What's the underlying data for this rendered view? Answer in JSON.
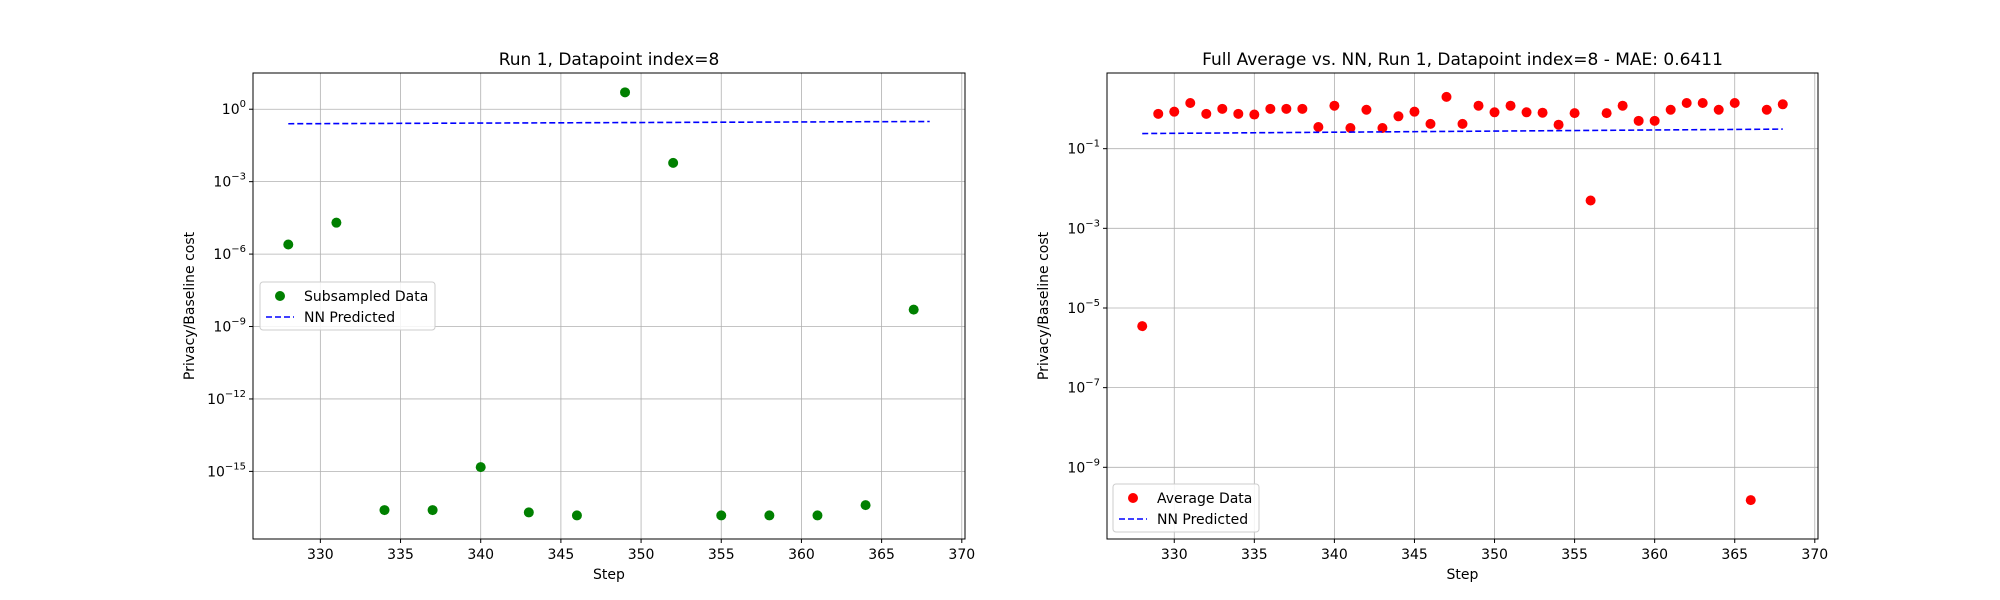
{
  "chart_data": [
    {
      "type": "scatter",
      "title": "Run 1, Datapoint index=8",
      "xlabel": "Step",
      "ylabel": "Privacy/Baseline cost",
      "yscale": "log",
      "xlim": [
        325.8,
        370.2
      ],
      "ylim_log10": [
        -17.8,
        1.5
      ],
      "xticks": [
        330,
        335,
        340,
        345,
        350,
        355,
        360,
        365,
        370
      ],
      "yticks_exp": [
        0,
        -3,
        -6,
        -9,
        -12,
        -15
      ],
      "grid": true,
      "legend_position": "center-left",
      "series": [
        {
          "name": "Subsampled Data",
          "kind": "scatter",
          "color": "#008000",
          "points": [
            {
              "x": 328,
              "y": 2.5e-06
            },
            {
              "x": 331,
              "y": 2e-05
            },
            {
              "x": 334,
              "y": 2.5e-17
            },
            {
              "x": 337,
              "y": 2.5e-17
            },
            {
              "x": 340,
              "y": 1.5e-15
            },
            {
              "x": 343,
              "y": 2e-17
            },
            {
              "x": 346,
              "y": 1.5e-17
            },
            {
              "x": 349,
              "y": 5.0
            },
            {
              "x": 352,
              "y": 0.006
            },
            {
              "x": 355,
              "y": 1.5e-17
            },
            {
              "x": 358,
              "y": 1.5e-17
            },
            {
              "x": 361,
              "y": 1.5e-17
            },
            {
              "x": 364,
              "y": 4e-17
            },
            {
              "x": 367,
              "y": 5e-09
            }
          ]
        },
        {
          "name": "NN Predicted",
          "kind": "dashed-line",
          "color": "#0000ff",
          "points": [
            {
              "x": 328,
              "y": 0.25
            },
            {
              "x": 368,
              "y": 0.31
            }
          ]
        }
      ]
    },
    {
      "type": "scatter",
      "title": "Full Average vs. NN, Run 1, Datapoint index=8 - MAE: 0.6411",
      "xlabel": "Step",
      "ylabel": "Privacy/Baseline cost",
      "yscale": "log",
      "xlim": [
        325.8,
        370.2
      ],
      "ylim_log10": [
        -10.8,
        0.9
      ],
      "xticks": [
        330,
        335,
        340,
        345,
        350,
        355,
        360,
        365,
        370
      ],
      "yticks_exp": [
        -1,
        -3,
        -5,
        -7,
        -9
      ],
      "grid": true,
      "legend_position": "lower-left",
      "series": [
        {
          "name": "Average Data",
          "kind": "scatter",
          "color": "#ff0000",
          "points": [
            {
              "x": 328,
              "y": 3.5e-06
            },
            {
              "x": 329,
              "y": 0.75
            },
            {
              "x": 330,
              "y": 0.85
            },
            {
              "x": 331,
              "y": 1.4
            },
            {
              "x": 332,
              "y": 0.75
            },
            {
              "x": 333,
              "y": 1.0
            },
            {
              "x": 334,
              "y": 0.75
            },
            {
              "x": 335,
              "y": 0.72
            },
            {
              "x": 336,
              "y": 1.0
            },
            {
              "x": 337,
              "y": 1.0
            },
            {
              "x": 338,
              "y": 1.0
            },
            {
              "x": 339,
              "y": 0.35
            },
            {
              "x": 340,
              "y": 1.2
            },
            {
              "x": 341,
              "y": 0.33
            },
            {
              "x": 342,
              "y": 0.95
            },
            {
              "x": 343,
              "y": 0.33
            },
            {
              "x": 344,
              "y": 0.65
            },
            {
              "x": 345,
              "y": 0.85
            },
            {
              "x": 346,
              "y": 0.42
            },
            {
              "x": 347,
              "y": 2.0
            },
            {
              "x": 348,
              "y": 0.42
            },
            {
              "x": 349,
              "y": 1.2
            },
            {
              "x": 350,
              "y": 0.82
            },
            {
              "x": 351,
              "y": 1.2
            },
            {
              "x": 352,
              "y": 0.82
            },
            {
              "x": 353,
              "y": 0.8
            },
            {
              "x": 354,
              "y": 0.4
            },
            {
              "x": 355,
              "y": 0.78
            },
            {
              "x": 356,
              "y": 0.005
            },
            {
              "x": 357,
              "y": 0.78
            },
            {
              "x": 358,
              "y": 1.2
            },
            {
              "x": 359,
              "y": 0.5
            },
            {
              "x": 360,
              "y": 0.5
            },
            {
              "x": 361,
              "y": 0.95
            },
            {
              "x": 362,
              "y": 1.4
            },
            {
              "x": 363,
              "y": 1.4
            },
            {
              "x": 364,
              "y": 0.95
            },
            {
              "x": 365,
              "y": 1.4
            },
            {
              "x": 366,
              "y": 1.5e-10
            },
            {
              "x": 367,
              "y": 0.95
            },
            {
              "x": 368,
              "y": 1.3
            }
          ]
        },
        {
          "name": "NN Predicted",
          "kind": "dashed-line",
          "color": "#0000ff",
          "points": [
            {
              "x": 328,
              "y": 0.24
            },
            {
              "x": 368,
              "y": 0.31
            }
          ]
        }
      ]
    }
  ]
}
